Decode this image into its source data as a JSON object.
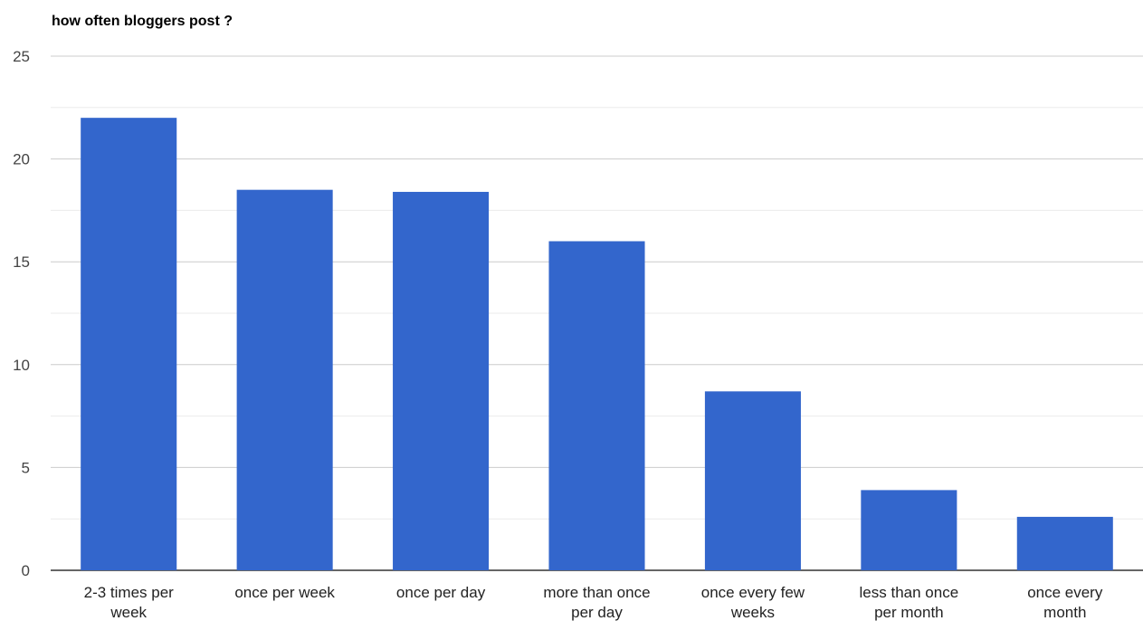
{
  "chart_data": {
    "type": "bar",
    "title": "how often bloggers post ?",
    "xlabel": "",
    "ylabel": "",
    "categories": [
      [
        "2-3 times per",
        "week"
      ],
      [
        "once per week"
      ],
      [
        "once per day"
      ],
      [
        "more than once",
        "per day"
      ],
      [
        "once every few",
        "weeks"
      ],
      [
        "less than once",
        "per month"
      ],
      [
        "once every",
        "month"
      ]
    ],
    "values": [
      22,
      18.5,
      18.4,
      16,
      8.7,
      3.9,
      2.6
    ],
    "ylim": [
      0,
      25
    ],
    "yticks": [
      0,
      5,
      10,
      15,
      20,
      25
    ],
    "minor_grid_step": 2.5,
    "grid": true,
    "legend": "none",
    "colors": {
      "bar": "#3366cc",
      "gridline": "#cccccc",
      "minor_gridline": "#ebebeb",
      "baseline": "#333333"
    }
  }
}
